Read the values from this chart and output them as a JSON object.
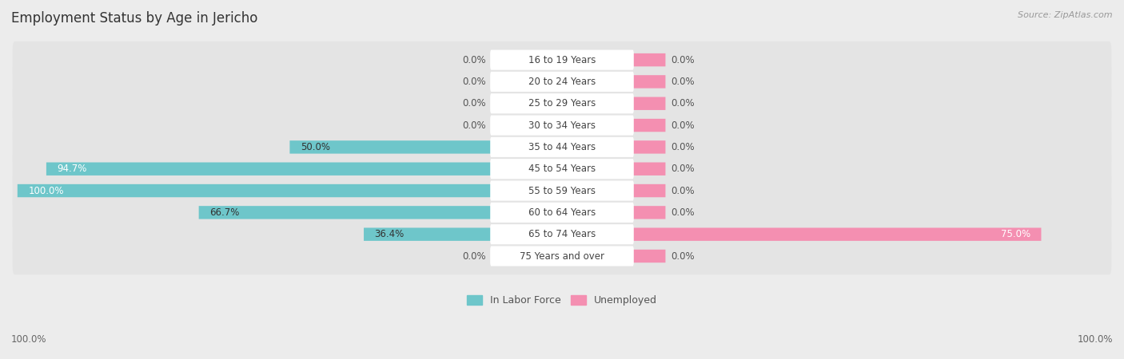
{
  "title": "Employment Status by Age in Jericho",
  "source": "Source: ZipAtlas.com",
  "categories": [
    "16 to 19 Years",
    "20 to 24 Years",
    "25 to 29 Years",
    "30 to 34 Years",
    "35 to 44 Years",
    "45 to 54 Years",
    "55 to 59 Years",
    "60 to 64 Years",
    "65 to 74 Years",
    "75 Years and over"
  ],
  "labor_force": [
    0.0,
    0.0,
    0.0,
    0.0,
    50.0,
    94.7,
    100.0,
    66.7,
    36.4,
    0.0
  ],
  "unemployed": [
    0.0,
    0.0,
    0.0,
    0.0,
    0.0,
    0.0,
    0.0,
    0.0,
    75.0,
    0.0
  ],
  "labor_force_color": "#6ec6ca",
  "unemployed_color": "#f48fb1",
  "bg_color": "#ececec",
  "row_bg_color": "#e0e0e0",
  "axis_label_left": "100.0%",
  "axis_label_right": "100.0%",
  "legend_labor": "In Labor Force",
  "legend_unemployed": "Unemployed",
  "title_fontsize": 12,
  "source_fontsize": 8,
  "label_fontsize": 8.5,
  "category_fontsize": 8.5,
  "max_val": 100.0,
  "stub_size": 8.0
}
